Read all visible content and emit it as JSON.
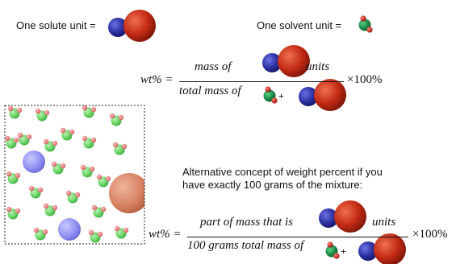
{
  "legend": {
    "solute_label": "One solute unit =",
    "solvent_label": "One solvent unit ="
  },
  "formula1": {
    "lhs": "wt% =",
    "numerator_prefix": "mass of",
    "numerator_suffix": "units",
    "denominator_prefix": "total mass of",
    "plus": "+",
    "multiplier": "×100%"
  },
  "alt_concept": {
    "line1": "Alternative concept of weight percent if you",
    "line2": "have exactly 100 grams of the mixture:"
  },
  "formula2": {
    "lhs": "wt% =",
    "numerator_prefix": "part of  mass that is",
    "numerator_suffix": "units",
    "denominator_prefix": "100 grams total mass of",
    "plus": "+",
    "multiplier": "×100%"
  },
  "colors": {
    "solute_small": "#2b2f9e",
    "solute_large": "#c22a14",
    "solvent_green": "#1f8a4a",
    "solvent_red": "#c42a1e",
    "mixture_solute_small": "#8c8cf2",
    "mixture_solute_large": "#d67f5f",
    "mixture_green": "#5fcf5c",
    "mixture_red": "#e57a7a"
  }
}
